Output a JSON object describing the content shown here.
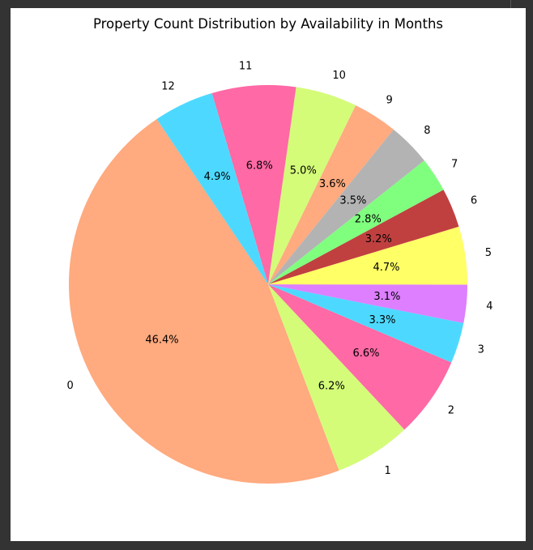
{
  "chart_data": {
    "type": "pie",
    "title": "Property Count Distribution by Availability in Months",
    "start_angle_deg": 124,
    "direction": "counterclockwise",
    "slices": [
      {
        "label": "0",
        "value": 46.4,
        "pct_text": "46.4%",
        "color": "#ffaa7f"
      },
      {
        "label": "1",
        "value": 6.2,
        "pct_text": "6.2%",
        "color": "#d4fc79"
      },
      {
        "label": "2",
        "value": 6.6,
        "pct_text": "6.6%",
        "color": "#ff69a5"
      },
      {
        "label": "3",
        "value": 3.3,
        "pct_text": "3.3%",
        "color": "#4dd9ff"
      },
      {
        "label": "4",
        "value": 3.1,
        "pct_text": "3.1%",
        "color": "#dd7fff"
      },
      {
        "label": "5",
        "value": 4.7,
        "pct_text": "4.7%",
        "color": "#ffff66"
      },
      {
        "label": "6",
        "value": 3.2,
        "pct_text": "3.2%",
        "color": "#c04040"
      },
      {
        "label": "7",
        "value": 2.8,
        "pct_text": "2.8%",
        "color": "#80ff7f"
      },
      {
        "label": "8",
        "value": 3.5,
        "pct_text": "3.5%",
        "color": "#b3b3b3"
      },
      {
        "label": "9",
        "value": 3.6,
        "pct_text": "3.6%",
        "color": "#ffaa7f"
      },
      {
        "label": "10",
        "value": 5.0,
        "pct_text": "5.0%",
        "color": "#d4fc79"
      },
      {
        "label": "11",
        "value": 6.8,
        "pct_text": "6.8%",
        "color": "#ff69a5"
      },
      {
        "label": "12",
        "value": 4.9,
        "pct_text": "4.9%",
        "color": "#4dd9ff"
      }
    ]
  }
}
